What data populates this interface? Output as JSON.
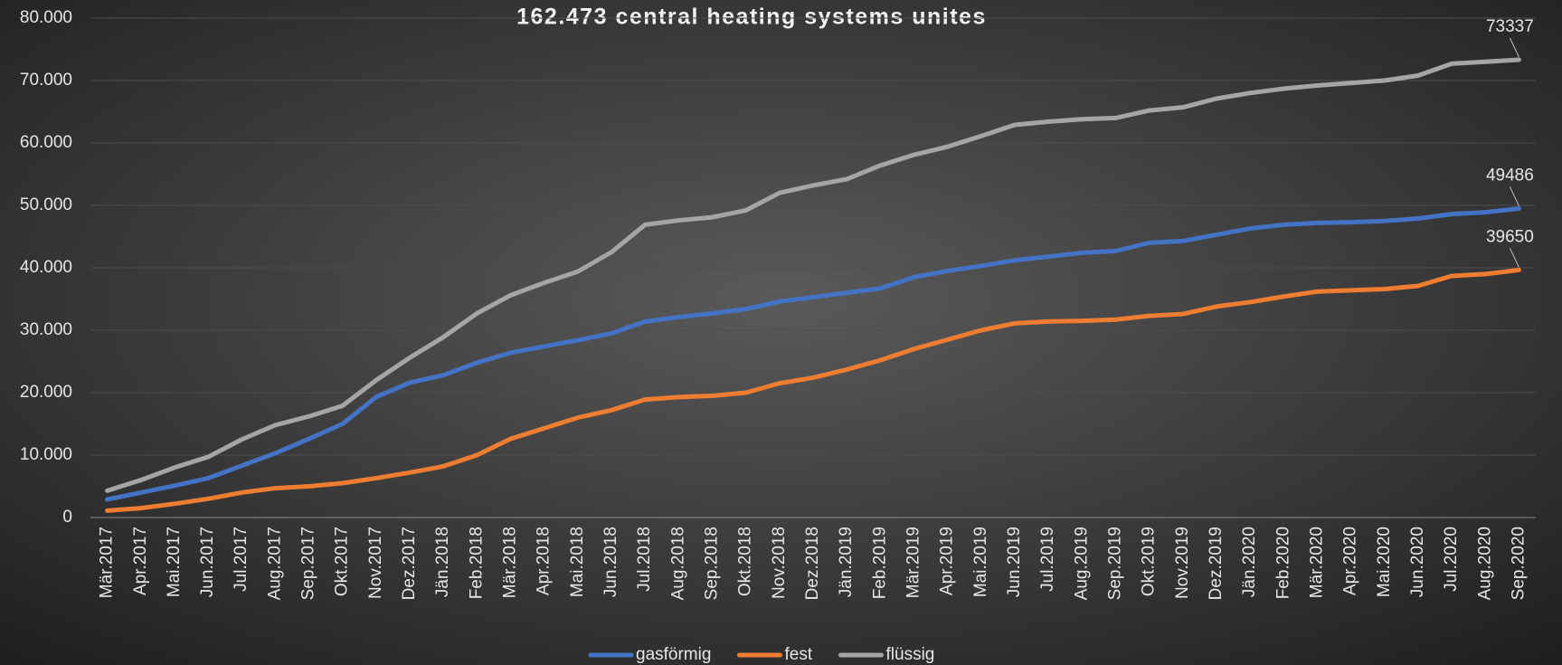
{
  "chart_data": {
    "type": "line",
    "title": "162.473 central heating systems unites",
    "categories": [
      "Mär.2017",
      "Apr.2017",
      "Mai.2017",
      "Jun.2017",
      "Jul.2017",
      "Aug.2017",
      "Sep.2017",
      "Okt.2017",
      "Nov.2017",
      "Dez.2017",
      "Jän.2018",
      "Feb.2018",
      "Mär.2018",
      "Apr.2018",
      "Mai.2018",
      "Jun.2018",
      "Jul.2018",
      "Aug.2018",
      "Sep.2018",
      "Okt.2018",
      "Nov.2018",
      "Dez.2018",
      "Jän.2019",
      "Feb.2019",
      "Mär.2019",
      "Apr.2019",
      "Mai.2019",
      "Jun.2019",
      "Jul.2019",
      "Aug.2019",
      "Sep.2019",
      "Okt.2019",
      "Nov.2019",
      "Dez.2019",
      "Jän.2020",
      "Feb.2020",
      "Mär.2020",
      "Apr.2020",
      "Mai.2020",
      "Jun.2020",
      "Jul.2020",
      "Aug.2020",
      "Sep.2020"
    ],
    "series": [
      {
        "name": "gasförmig",
        "color": "#4472c4",
        "values": [
          2900,
          4000,
          5100,
          6300,
          8300,
          10300,
          12600,
          15000,
          19300,
          21600,
          22800,
          24800,
          26400,
          27400,
          28400,
          29500,
          31400,
          32100,
          32700,
          33400,
          34600,
          35300,
          36000,
          36700,
          38500,
          39500,
          40300,
          41200,
          41800,
          42400,
          42700,
          44000,
          44300,
          45300,
          46300,
          46900,
          47200,
          47300,
          47500,
          47900,
          48600,
          48900,
          49486
        ]
      },
      {
        "name": "fest",
        "color": "#ed7d31",
        "values": [
          1100,
          1500,
          2200,
          3000,
          4000,
          4700,
          5000,
          5500,
          6300,
          7200,
          8200,
          10000,
          12600,
          14300,
          16000,
          17200,
          18900,
          19300,
          19500,
          20000,
          21500,
          22400,
          23700,
          25200,
          27000,
          28500,
          30000,
          31100,
          31400,
          31500,
          31700,
          32300,
          32600,
          33800,
          34500,
          35400,
          36200,
          36400,
          36600,
          37100,
          38700,
          39000,
          39650
        ]
      },
      {
        "name": "flüssig",
        "color": "#a5a5a5",
        "values": [
          4300,
          6000,
          8000,
          9700,
          12500,
          14800,
          16200,
          17900,
          22000,
          25600,
          28900,
          32700,
          35600,
          37600,
          39400,
          42500,
          46900,
          47600,
          48100,
          49200,
          52000,
          53200,
          54200,
          56400,
          58100,
          59400,
          61100,
          62900,
          63400,
          63800,
          64000,
          65200,
          65700,
          67100,
          68000,
          68700,
          69200,
          69600,
          70000,
          70800,
          72700,
          73000,
          73337
        ]
      }
    ],
    "ylim": [
      0,
      80000
    ],
    "yticks": [
      0,
      {
        "value": 10000,
        "label": "10.000"
      },
      {
        "value": 20000,
        "label": "20.000"
      },
      {
        "value": 30000,
        "label": "30.000"
      },
      {
        "value": 40000,
        "label": "40.000"
      },
      {
        "value": 50000,
        "label": "50.000"
      },
      {
        "value": 60000,
        "label": "60.000"
      },
      {
        "value": 70000,
        "label": "70.000"
      },
      {
        "value": 80000,
        "label": "80.000"
      }
    ],
    "grid": true,
    "legend": "bottom"
  }
}
